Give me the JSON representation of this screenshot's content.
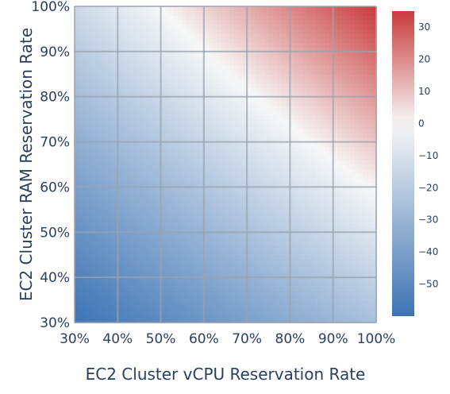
{
  "chart_data": {
    "type": "heatmap",
    "title": "",
    "xlabel": "EC2 Cluster vCPU Reservation Rate",
    "ylabel": "EC2 Cluster RAM Reservation Rate",
    "x_range": [
      0.3,
      1.0
    ],
    "y_range": [
      0.3,
      1.0
    ],
    "x_ticks": [
      "30%",
      "40%",
      "50%",
      "60%",
      "70%",
      "80%",
      "90%",
      "100%"
    ],
    "y_ticks": [
      "30%",
      "40%",
      "50%",
      "60%",
      "70%",
      "80%",
      "90%",
      "100%"
    ],
    "grid": true,
    "colorscale": "RdBu (reversed)",
    "colors": {
      "low": "#3d74b5",
      "mid": "#f7f7f7",
      "high": "#c93b3b",
      "grid": "#9aa3ad"
    },
    "z_range": [
      -60,
      35
    ],
    "z_zero_line": "x + y = 1.65",
    "z_corners": {
      "x30_y30": -60,
      "x100_y30": -25,
      "x30_y100": -14,
      "x100_y100": 35
    },
    "colorbar": {
      "ticks": [
        30,
        20,
        10,
        0,
        -10,
        -20,
        -30,
        -40,
        -50
      ],
      "tick_labels": [
        "30",
        "20",
        "10",
        "0",
        "−10",
        "−20",
        "−30",
        "−40",
        "−50"
      ]
    }
  }
}
